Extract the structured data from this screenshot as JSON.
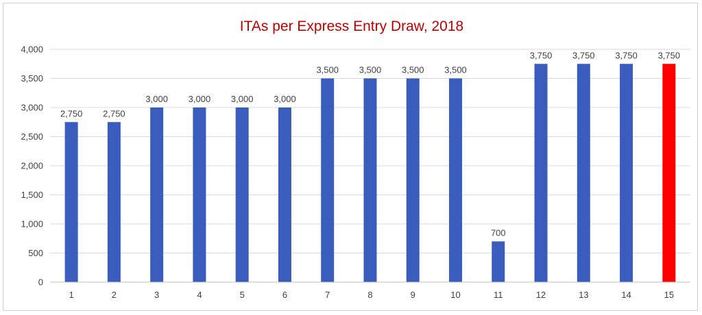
{
  "chart_data": {
    "type": "bar",
    "title": "ITAs per Express Entry Draw, 2018",
    "xlabel": "",
    "ylabel": "",
    "categories": [
      "1",
      "2",
      "3",
      "4",
      "5",
      "6",
      "7",
      "8",
      "9",
      "10",
      "11",
      "12",
      "13",
      "14",
      "15"
    ],
    "values": [
      2750,
      2750,
      3000,
      3000,
      3000,
      3000,
      3500,
      3500,
      3500,
      3500,
      700,
      3750,
      3750,
      3750,
      3750
    ],
    "data_labels": [
      "2,750",
      "2,750",
      "3,000",
      "3,000",
      "3,000",
      "3,000",
      "3,500",
      "3,500",
      "3,500",
      "3,500",
      "700",
      "3,750",
      "3,750",
      "3,750",
      "3,750"
    ],
    "ylim": [
      0,
      4000
    ],
    "yticks": [
      0,
      500,
      1000,
      1500,
      2000,
      2500,
      3000,
      3500,
      4000
    ],
    "ytick_labels": [
      "0",
      "500",
      "1,000",
      "1,500",
      "2,000",
      "2,500",
      "3,000",
      "3,500",
      "4,000"
    ],
    "grid": true,
    "legend": "none",
    "colors": {
      "bar": "#3a5dbd",
      "highlight": "#ff0000",
      "title": "#c00000"
    },
    "highlight_index": 14
  }
}
